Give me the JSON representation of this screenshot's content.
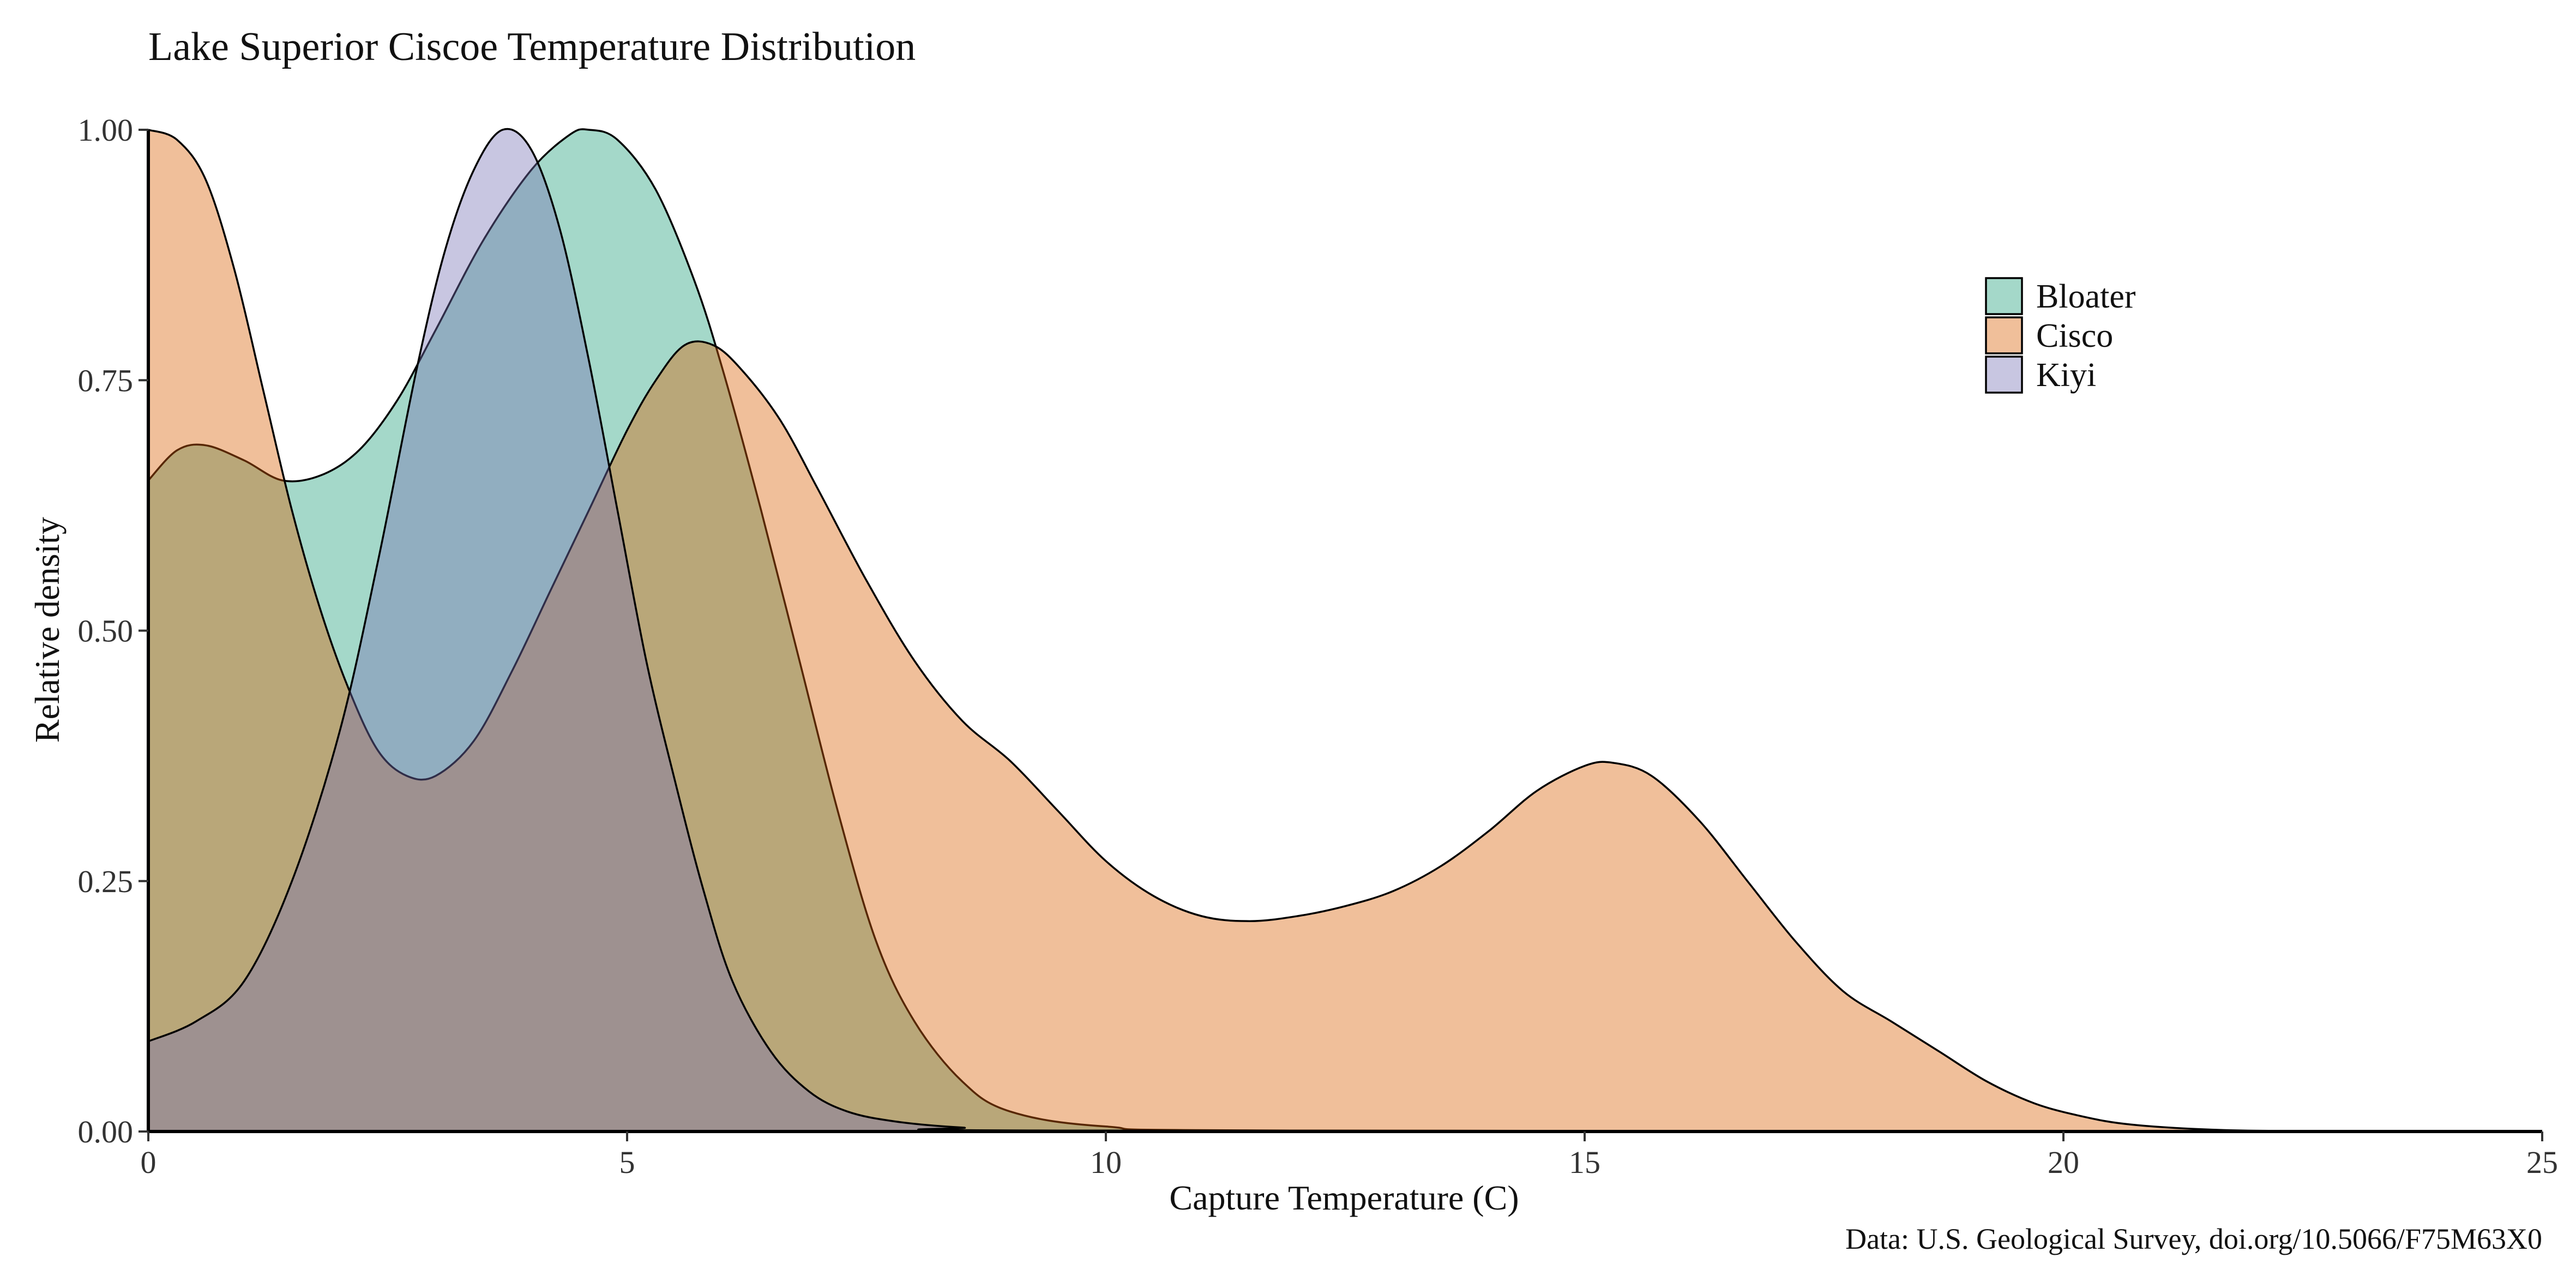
{
  "chart_data": {
    "type": "area",
    "subtype": "density",
    "title": "Lake Superior Ciscoe Temperature Distribution",
    "xlabel": "Capture Temperature (C)",
    "ylabel": "Relative density",
    "caption": "Data: U.S. Geological Survey, doi.org/10.5066/F75M63X0",
    "xlim": [
      0,
      25
    ],
    "ylim": [
      0,
      1
    ],
    "x_ticks": [
      0,
      5,
      10,
      15,
      20,
      25
    ],
    "x_tick_labels": [
      "0",
      "5",
      "10",
      "15",
      "20",
      "25"
    ],
    "y_ticks": [
      0,
      0.25,
      0.5,
      0.75,
      1.0
    ],
    "y_tick_labels": [
      "0.00",
      "0.25",
      "0.50",
      "0.75",
      "1.00"
    ],
    "grid": false,
    "legend_position": "top-right",
    "series": [
      {
        "name": "Bloater",
        "color": "#1b9e77",
        "fill_opacity": 0.4,
        "points": [
          [
            0,
            0.65
          ],
          [
            0.3,
            0.68
          ],
          [
            0.6,
            0.685
          ],
          [
            1.0,
            0.67
          ],
          [
            1.4,
            0.65
          ],
          [
            1.8,
            0.655
          ],
          [
            2.2,
            0.68
          ],
          [
            2.6,
            0.73
          ],
          [
            3.0,
            0.8
          ],
          [
            3.5,
            0.89
          ],
          [
            4.0,
            0.96
          ],
          [
            4.4,
            0.995
          ],
          [
            4.6,
            1.0
          ],
          [
            4.9,
            0.99
          ],
          [
            5.3,
            0.94
          ],
          [
            5.7,
            0.85
          ],
          [
            6.0,
            0.76
          ],
          [
            6.4,
            0.62
          ],
          [
            6.8,
            0.47
          ],
          [
            7.2,
            0.32
          ],
          [
            7.6,
            0.19
          ],
          [
            8.0,
            0.11
          ],
          [
            8.5,
            0.05
          ],
          [
            9.0,
            0.02
          ],
          [
            10.0,
            0.005
          ],
          [
            12.0,
            0.001
          ],
          [
            25,
            0
          ]
        ]
      },
      {
        "name": "Cisco",
        "color": "#d95f02",
        "fill_opacity": 0.4,
        "points": [
          [
            0,
            1.0
          ],
          [
            0.3,
            0.99
          ],
          [
            0.6,
            0.95
          ],
          [
            0.9,
            0.86
          ],
          [
            1.2,
            0.74
          ],
          [
            1.5,
            0.62
          ],
          [
            1.8,
            0.52
          ],
          [
            2.1,
            0.44
          ],
          [
            2.4,
            0.38
          ],
          [
            2.7,
            0.355
          ],
          [
            3.0,
            0.355
          ],
          [
            3.4,
            0.39
          ],
          [
            3.8,
            0.46
          ],
          [
            4.2,
            0.54
          ],
          [
            4.6,
            0.62
          ],
          [
            5.0,
            0.7
          ],
          [
            5.3,
            0.75
          ],
          [
            5.6,
            0.785
          ],
          [
            5.9,
            0.785
          ],
          [
            6.2,
            0.76
          ],
          [
            6.6,
            0.71
          ],
          [
            7.0,
            0.64
          ],
          [
            7.5,
            0.55
          ],
          [
            8.0,
            0.47
          ],
          [
            8.5,
            0.41
          ],
          [
            9.0,
            0.37
          ],
          [
            9.5,
            0.32
          ],
          [
            10.0,
            0.27
          ],
          [
            10.5,
            0.235
          ],
          [
            11.0,
            0.215
          ],
          [
            11.5,
            0.21
          ],
          [
            12.0,
            0.215
          ],
          [
            12.5,
            0.225
          ],
          [
            13.0,
            0.24
          ],
          [
            13.5,
            0.265
          ],
          [
            14.0,
            0.3
          ],
          [
            14.5,
            0.34
          ],
          [
            15.0,
            0.365
          ],
          [
            15.3,
            0.368
          ],
          [
            15.7,
            0.355
          ],
          [
            16.2,
            0.31
          ],
          [
            16.7,
            0.25
          ],
          [
            17.2,
            0.19
          ],
          [
            17.7,
            0.14
          ],
          [
            18.2,
            0.11
          ],
          [
            18.7,
            0.08
          ],
          [
            19.2,
            0.05
          ],
          [
            19.7,
            0.028
          ],
          [
            20.2,
            0.015
          ],
          [
            20.7,
            0.007
          ],
          [
            21.5,
            0.002
          ],
          [
            22.5,
            0.0005
          ],
          [
            25,
            0
          ]
        ]
      },
      {
        "name": "Kiyi",
        "color": "#7570b3",
        "fill_opacity": 0.4,
        "points": [
          [
            0,
            0.09
          ],
          [
            0.5,
            0.11
          ],
          [
            1.0,
            0.15
          ],
          [
            1.5,
            0.25
          ],
          [
            2.0,
            0.4
          ],
          [
            2.4,
            0.57
          ],
          [
            2.8,
            0.76
          ],
          [
            3.1,
            0.88
          ],
          [
            3.4,
            0.96
          ],
          [
            3.7,
            1.0
          ],
          [
            4.0,
            0.98
          ],
          [
            4.3,
            0.9
          ],
          [
            4.6,
            0.77
          ],
          [
            4.9,
            0.62
          ],
          [
            5.2,
            0.47
          ],
          [
            5.5,
            0.35
          ],
          [
            5.8,
            0.24
          ],
          [
            6.1,
            0.15
          ],
          [
            6.5,
            0.08
          ],
          [
            6.9,
            0.04
          ],
          [
            7.3,
            0.02
          ],
          [
            7.8,
            0.01
          ],
          [
            8.5,
            0.004
          ],
          [
            9.5,
            0.001
          ],
          [
            25,
            0
          ]
        ]
      }
    ],
    "cisco_secondary_note": "",
    "overlap_fill_color": "#8b7d3a"
  }
}
